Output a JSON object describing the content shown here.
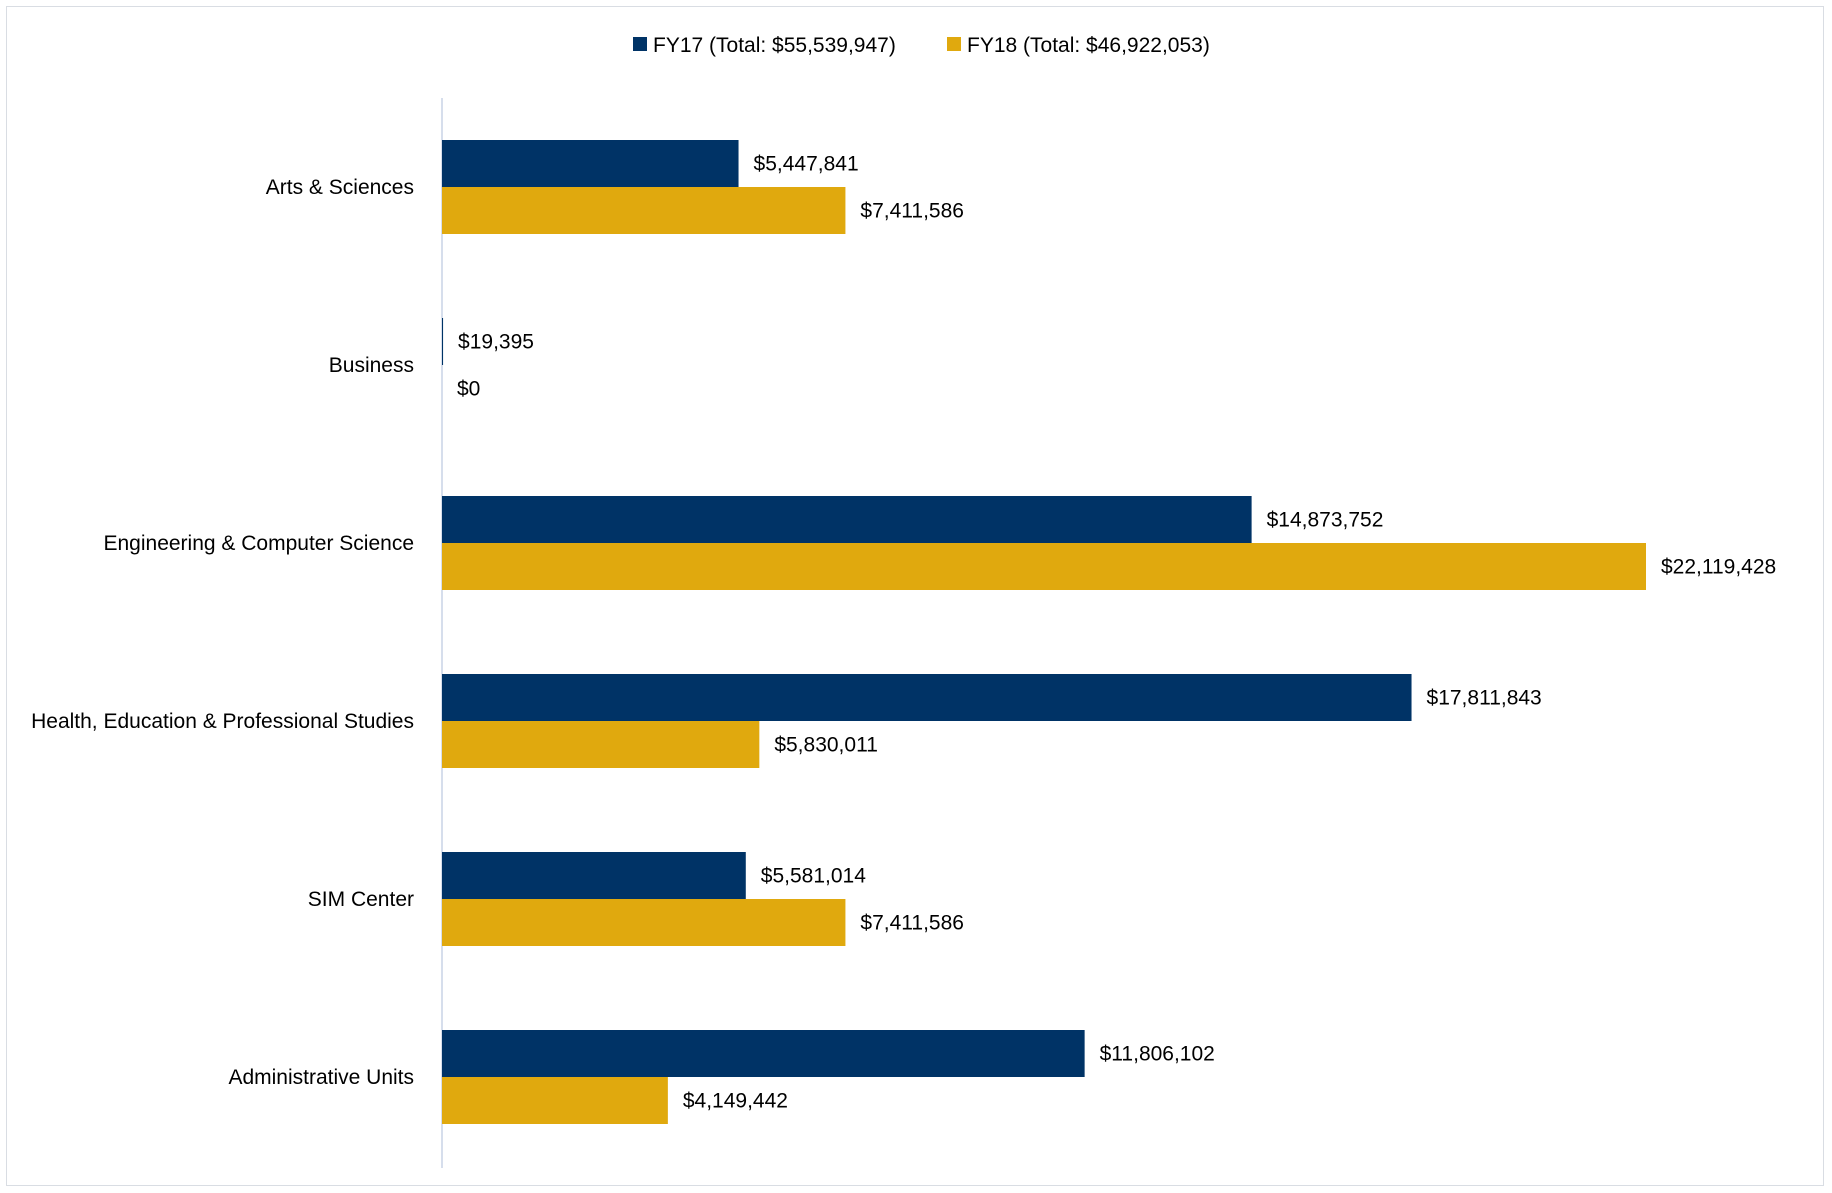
{
  "chart_data": {
    "type": "bar",
    "orientation": "horizontal",
    "categories": [
      "Arts & Sciences",
      "Business",
      "Engineering & Computer Science",
      "Health, Education & Professional Studies",
      "SIM Center",
      "Administrative Units"
    ],
    "series": [
      {
        "name": "FY17 (Total: $55,539,947)",
        "color": "#003366",
        "values": [
          5447841,
          19395,
          14873752,
          17811843,
          5581014,
          11806102
        ],
        "labels": [
          "$5,447,841",
          "$19,395",
          "$14,873,752",
          "$17,811,843",
          "$5,581,014",
          "$11,806,102"
        ]
      },
      {
        "name": "FY18 (Total: $46,922,053)",
        "color": "#E0A90E",
        "values": [
          7411586,
          0,
          22119428,
          5830011,
          7411586,
          4149442
        ],
        "labels": [
          "$7,411,586",
          "$0",
          "$22,119,428",
          "$5,830,011",
          "$7,411,586",
          "$4,149,442"
        ]
      }
    ],
    "xlim": [
      0,
      22119428
    ],
    "legend": "top-center",
    "grid": false,
    "title": "",
    "xlabel": "",
    "ylabel": ""
  }
}
